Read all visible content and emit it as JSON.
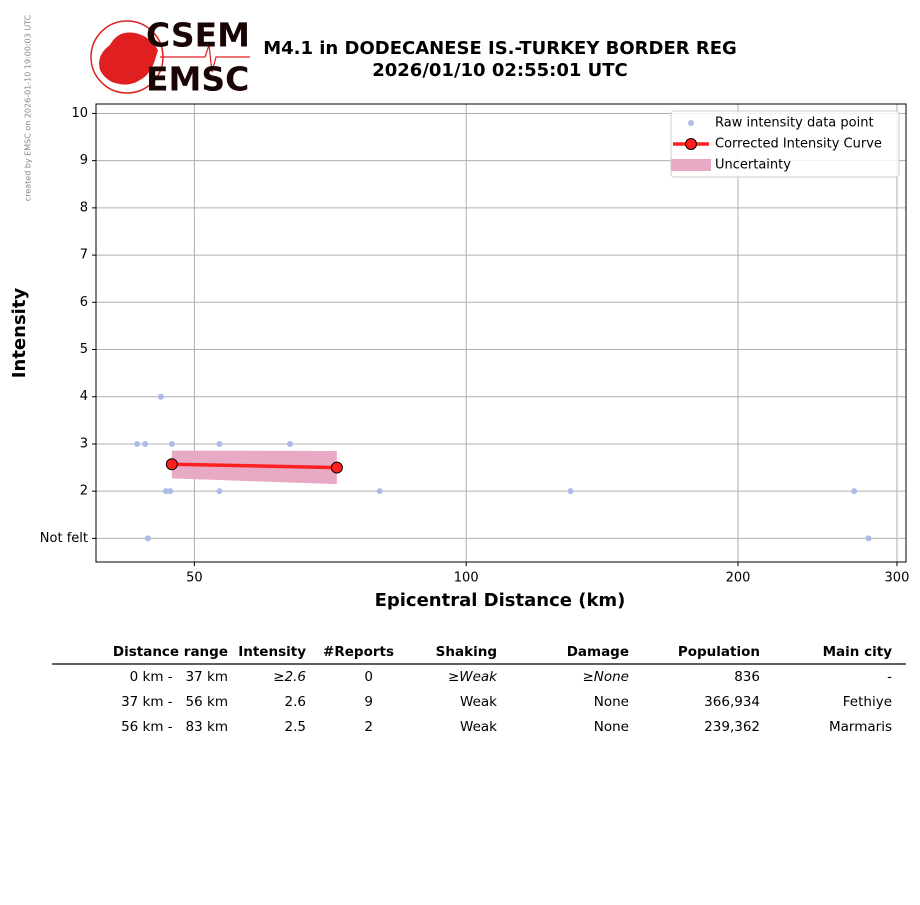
{
  "created_note": "created by EMSC on 2026-01-10 19:00:03 UTC",
  "logo": {
    "top": "CSEM",
    "bottom": "EMSC"
  },
  "chart_data": {
    "type": "scatter",
    "title": [
      "M4.1 in DODECANESE IS.-TURKEY BORDER REG",
      "2026/01/10 02:55:01 UTC"
    ],
    "xlabel": "Epicentral Distance (km)",
    "ylabel": "Intensity",
    "xscale": "log",
    "xlim": [
      38.9,
      307
    ],
    "xticks": [
      50,
      100,
      200,
      300
    ],
    "ylim": [
      0.5,
      10.2
    ],
    "yticks": [
      {
        "value": 1,
        "label": "Not felt"
      },
      2,
      3,
      4,
      5,
      6,
      7,
      8,
      9,
      10
    ],
    "grid": true,
    "legend": "upper right",
    "series": [
      {
        "name": "Raw intensity data point",
        "type": "scatter",
        "color": "#aebbe8",
        "x": [
          43.2,
          44.1,
          45.9,
          47.2,
          53.3,
          63.8,
          46.5,
          47.0,
          53.3,
          80.2,
          130.5,
          269,
          44.4,
          279
        ],
        "values": [
          3,
          3,
          4,
          3,
          3,
          3,
          2,
          2,
          2,
          2,
          2,
          2,
          1,
          1
        ]
      },
      {
        "name": "Corrected Intensity Curve",
        "type": "line",
        "color": "#ff2020",
        "x": [
          47.2,
          71.9
        ],
        "values": [
          2.57,
          2.5
        ]
      },
      {
        "name": "Uncertainty",
        "type": "band",
        "color": "#e8a9c4",
        "x": [
          47.2,
          71.9
        ],
        "lower": [
          2.27,
          2.15
        ],
        "upper": [
          2.86,
          2.85
        ]
      }
    ]
  },
  "table": {
    "headers": [
      "Distance range",
      "Intensity",
      "#Reports",
      "Shaking",
      "Damage",
      "Population",
      "Main city"
    ],
    "rows": [
      [
        "0 km -   37 km",
        "≥2.6",
        "0",
        "≥Weak",
        "≥None",
        "836",
        "-"
      ],
      [
        "37 km -   56 km",
        "2.6",
        "9",
        "Weak",
        "None",
        "366,934",
        "Fethiye"
      ],
      [
        "56 km -   83 km",
        "2.5",
        "2",
        "Weak",
        "None",
        "239,362",
        "Marmaris"
      ]
    ]
  }
}
